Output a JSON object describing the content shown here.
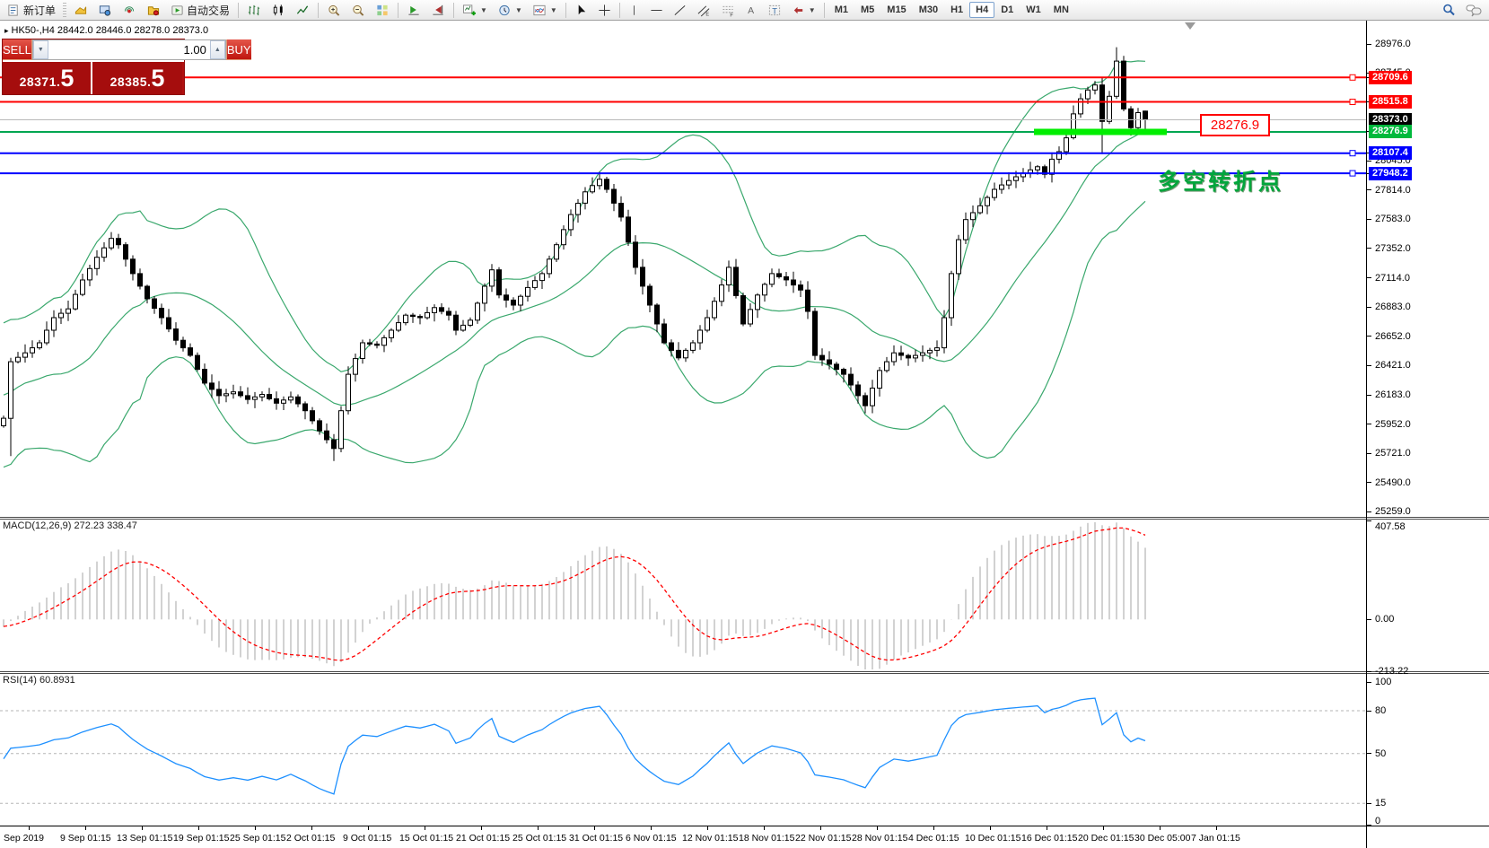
{
  "toolbar": {
    "new_order_label": "新订单",
    "autotrading_label": "自动交易",
    "timeframes": [
      "M1",
      "M5",
      "M15",
      "M30",
      "H1",
      "H4",
      "D1",
      "W1",
      "MN"
    ],
    "active_timeframe": "H4"
  },
  "symbol_header": "HK50-,H4  28442.0 28446.0 28278.0 28373.0",
  "trade_panel": {
    "sell_label": "SELL",
    "buy_label": "BUY",
    "lot_value": "1.00",
    "sell_price": {
      "small": "28371.",
      "big": "5"
    },
    "buy_price": {
      "small": "28385.",
      "big": "5"
    }
  },
  "annotations": {
    "turning_point_text": "多空转折点",
    "price_callout": "28276.9"
  },
  "colors": {
    "band_green": "#3aa86d",
    "bull": "#ffffff",
    "bear": "#000000",
    "candle_outline": "#000000",
    "macd_hist": "#c6c6c6",
    "macd_signal": "#ff0000",
    "rsi_line": "#1e90ff",
    "red_line": "#ff0000",
    "blue_line": "#0000ff",
    "green_line": "#00a651",
    "thick_green": "#00ee00",
    "current_line": "#b8b8b8",
    "level_dash": "#b5b5b5"
  },
  "price_axis": {
    "ticks": [
      28976.0,
      28745.0,
      28045.0,
      27814.0,
      27583.0,
      27352.0,
      27114.0,
      26883.0,
      26652.0,
      26421.0,
      26183.0,
      25952.0,
      25721.0,
      25490.0,
      25259.0
    ],
    "line_labels": [
      {
        "label": "28709.6",
        "price": 28709.6,
        "bg": "#ff0000"
      },
      {
        "label": "28515.8",
        "price": 28515.8,
        "bg": "#ff0000"
      },
      {
        "label": "28373.0",
        "price": 28373.0,
        "bg": "#000000"
      },
      {
        "label": "28276.9",
        "price": 28276.9,
        "bg": "#00b93c"
      },
      {
        "label": "28107.4",
        "price": 28107.4,
        "bg": "#0000ff"
      },
      {
        "label": "27948.2",
        "price": 27948.2,
        "bg": "#0000ff"
      }
    ]
  },
  "macd_panel": {
    "label": "MACD(12,26,9) 272.23 338.47",
    "axis_labels": [
      "407.58",
      "0.00",
      "-213.22"
    ],
    "ylim": [
      -213.22,
      407.58
    ]
  },
  "rsi_panel": {
    "label": "RSI(14) 60.8931",
    "axis_labels": [
      "100",
      "80",
      "50",
      "15",
      "0"
    ],
    "levels": [
      80,
      50,
      15
    ],
    "ylim": [
      0,
      100
    ]
  },
  "time_axis": [
    "Sep 2019",
    "9 Sep 01:15",
    "13 Sep 01:15",
    "19 Sep 01:15",
    "25 Sep 01:15",
    "2 Oct 01:15",
    "9 Oct 01:15",
    "15 Oct 01:15",
    "21 Oct 01:15",
    "25 Oct 01:15",
    "31 Oct 01:15",
    "6 Nov 01:15",
    "12 Nov 01:15",
    "18 Nov 01:15",
    "22 Nov 01:15",
    "28 Nov 01:15",
    "4 Dec 01:15",
    "10 Dec 01:15",
    "16 Dec 01:15",
    "20 Dec 01:15",
    "30 Dec 05:00",
    "7 Jan 01:15"
  ],
  "chart_data": {
    "type": "candlestick",
    "symbol": "HK50-",
    "timeframe": "H4",
    "last_ohlc": {
      "open": 28442.0,
      "high": 28446.0,
      "low": 28278.0,
      "close": 28373.0
    },
    "bid": 28371.5,
    "ask": 28385.5,
    "ylim": [
      25259.0,
      28976.0
    ],
    "bars": 160,
    "price_path": [
      [
        0,
        26000
      ],
      [
        1,
        26450
      ],
      [
        3,
        26520
      ],
      [
        5,
        26600
      ],
      [
        7,
        26800
      ],
      [
        9,
        26870
      ],
      [
        11,
        27100
      ],
      [
        13,
        27280
      ],
      [
        15,
        27430
      ],
      [
        16,
        27380
      ],
      [
        18,
        27150
      ],
      [
        20,
        26950
      ],
      [
        22,
        26800
      ],
      [
        24,
        26620
      ],
      [
        26,
        26500
      ],
      [
        28,
        26280
      ],
      [
        30,
        26180
      ],
      [
        32,
        26210
      ],
      [
        34,
        26150
      ],
      [
        36,
        26190
      ],
      [
        38,
        26120
      ],
      [
        40,
        26170
      ],
      [
        42,
        26060
      ],
      [
        44,
        25900
      ],
      [
        46,
        25760
      ],
      [
        47,
        26060
      ],
      [
        48,
        26350
      ],
      [
        50,
        26600
      ],
      [
        52,
        26580
      ],
      [
        54,
        26700
      ],
      [
        56,
        26820
      ],
      [
        58,
        26800
      ],
      [
        60,
        26880
      ],
      [
        62,
        26820
      ],
      [
        63,
        26700
      ],
      [
        65,
        26780
      ],
      [
        67,
        27050
      ],
      [
        68,
        27180
      ],
      [
        69,
        26980
      ],
      [
        71,
        26900
      ],
      [
        73,
        27040
      ],
      [
        75,
        27150
      ],
      [
        77,
        27380
      ],
      [
        79,
        27620
      ],
      [
        81,
        27800
      ],
      [
        83,
        27900
      ],
      [
        84,
        27820
      ],
      [
        86,
        27600
      ],
      [
        88,
        27200
      ],
      [
        90,
        26900
      ],
      [
        92,
        26600
      ],
      [
        94,
        26480
      ],
      [
        96,
        26600
      ],
      [
        98,
        26800
      ],
      [
        100,
        27060
      ],
      [
        101,
        27200
      ],
      [
        103,
        26750
      ],
      [
        105,
        26980
      ],
      [
        107,
        27150
      ],
      [
        109,
        27100
      ],
      [
        111,
        27020
      ],
      [
        112,
        26850
      ],
      [
        113,
        26500
      ],
      [
        115,
        26430
      ],
      [
        117,
        26350
      ],
      [
        119,
        26180
      ],
      [
        120,
        26100
      ],
      [
        122,
        26380
      ],
      [
        124,
        26520
      ],
      [
        126,
        26480
      ],
      [
        128,
        26520
      ],
      [
        130,
        26560
      ],
      [
        131,
        26800
      ],
      [
        132,
        27150
      ],
      [
        133,
        27420
      ],
      [
        134,
        27580
      ],
      [
        136,
        27690
      ],
      [
        138,
        27820
      ],
      [
        140,
        27890
      ],
      [
        142,
        27950
      ],
      [
        144,
        28000
      ],
      [
        145,
        27940
      ],
      [
        146,
        28060
      ],
      [
        147,
        28120
      ],
      [
        148,
        28230
      ],
      [
        149,
        28420
      ],
      [
        150,
        28540
      ],
      [
        151,
        28610
      ],
      [
        152,
        28650
      ],
      [
        153,
        28360
      ],
      [
        154,
        28560
      ],
      [
        155,
        28840
      ],
      [
        156,
        28460
      ],
      [
        157,
        28310
      ],
      [
        158,
        28430
      ],
      [
        159,
        28373
      ]
    ],
    "specials": {
      "1": {
        "low": 25700
      },
      "46": {
        "low": 25660
      },
      "153": {
        "low": 28100
      },
      "155": {
        "high": 28950
      },
      "159": {
        "open": 28442,
        "high": 28446,
        "low": 28278,
        "close": 28373
      }
    },
    "hlines": [
      {
        "price": 28709.6,
        "color": "red",
        "width": 2
      },
      {
        "price": 28515.8,
        "color": "red",
        "width": 2
      },
      {
        "price": 28373.0,
        "color": "current",
        "width": 1
      },
      {
        "price": 28276.9,
        "color": "green",
        "width": 2
      },
      {
        "price": 28107.4,
        "color": "blue",
        "width": 2
      },
      {
        "price": 27948.2,
        "color": "blue",
        "width": 2
      }
    ],
    "thick_segment": {
      "price": 28276.9,
      "x_from_bar": 144,
      "x_to_bar": 162.5,
      "thickness": 7
    },
    "indicators": [
      {
        "name": "Bollinger Bands",
        "period": 20,
        "deviation": 2
      },
      {
        "name": "MACD",
        "params": [
          12,
          26,
          9
        ],
        "values": [
          272.23,
          338.47
        ]
      },
      {
        "name": "RSI",
        "period": 14,
        "value": 60.8931
      }
    ]
  }
}
